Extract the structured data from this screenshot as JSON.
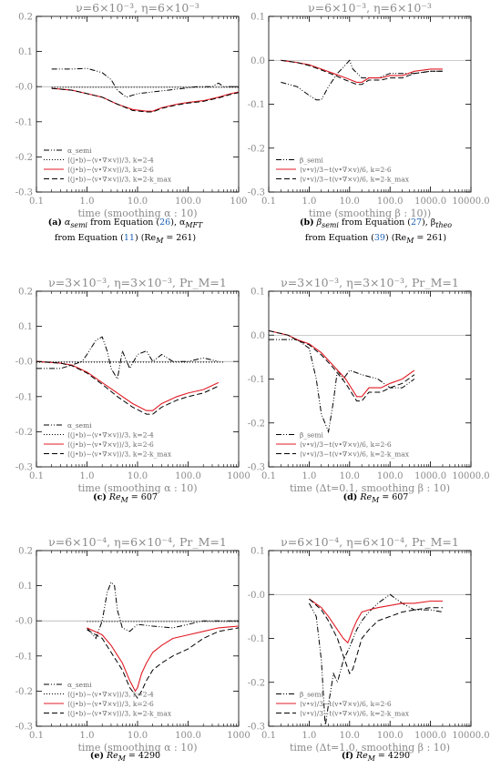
{
  "chart_data": [
    {
      "type": "line",
      "title": "ν=6×10⁻³, η=6×10⁻³",
      "xlabel": "time (smoothing α : 10)",
      "ylabel": "",
      "xscale": "log",
      "xlim": [
        0.1,
        1000
      ],
      "ylim": [
        -0.3,
        0.2
      ],
      "xticks": [
        "0.1",
        "1.0",
        "10.0",
        "100.0",
        "100"
      ],
      "yticks": [
        "0.2",
        "0.1",
        "-0.0",
        "-0.1",
        "-0.2",
        "-0.3"
      ],
      "legend_position": "lower-left",
      "series": [
        {
          "name": "α_semi",
          "style": "dashdotdot",
          "color": "#000000",
          "x": [
            0.2,
            0.5,
            1,
            2,
            3,
            4,
            6,
            10,
            20,
            40,
            80,
            150,
            300,
            400,
            500,
            1000
          ],
          "y": [
            0.05,
            0.05,
            0.052,
            0.04,
            0.02,
            -0.01,
            -0.03,
            -0.02,
            -0.015,
            -0.01,
            -0.005,
            0,
            0,
            0.01,
            0,
            0
          ]
        },
        {
          "name": "⟨(j•b)−⟨v•∇×v⟩⟩/3, k=2-4",
          "style": "dotted",
          "color": "#000000",
          "x": [
            0.2,
            1,
            5,
            10,
            50,
            100,
            300,
            1000
          ],
          "y": [
            -0.002,
            -0.002,
            -0.002,
            -0.002,
            -0.002,
            -0.002,
            -0.002,
            -0.002
          ]
        },
        {
          "name": "⟨(j•b)−⟨v•∇×v⟩⟩/3, k=2-6",
          "style": "solid",
          "color": "#e01b24",
          "x": [
            0.2,
            0.5,
            1,
            2,
            4,
            8,
            15,
            20,
            30,
            60,
            100,
            200,
            400,
            700,
            1000
          ],
          "y": [
            -0.005,
            -0.01,
            -0.02,
            -0.03,
            -0.05,
            -0.065,
            -0.07,
            -0.07,
            -0.06,
            -0.05,
            -0.045,
            -0.04,
            -0.03,
            -0.02,
            -0.015
          ]
        },
        {
          "name": "⟨(j•b)−⟨v•∇×v⟩⟩/3, k=2-k_max",
          "style": "dashed",
          "color": "#000000",
          "x": [
            0.2,
            0.5,
            1,
            2,
            4,
            8,
            15,
            20,
            30,
            60,
            100,
            200,
            400,
            700,
            1000
          ],
          "y": [
            -0.005,
            -0.01,
            -0.02,
            -0.03,
            -0.05,
            -0.068,
            -0.072,
            -0.072,
            -0.062,
            -0.052,
            -0.047,
            -0.042,
            -0.032,
            -0.022,
            -0.017
          ]
        }
      ]
    },
    {
      "type": "line",
      "title": "ν=6×10⁻³, η=6×10⁻³",
      "xlabel": "time (smoothing β : 10))",
      "ylabel": "",
      "xscale": "log",
      "xlim": [
        0.1,
        10000
      ],
      "ylim": [
        -0.3,
        0.1
      ],
      "xticks": [
        "0.1",
        "1.0",
        "10.0",
        "100.0",
        "1000.0",
        "10000.0"
      ],
      "yticks": [
        "0.1",
        "0.0",
        "-0.1",
        "-0.2",
        "-0.3"
      ],
      "legend_position": "lower-left",
      "series": [
        {
          "name": "β_semi",
          "style": "dashdotdot",
          "color": "#000000",
          "x": [
            0.2,
            0.5,
            1,
            1.5,
            2,
            3,
            5,
            8,
            10,
            12,
            20,
            50,
            100,
            200,
            400,
            1000,
            2000
          ],
          "y": [
            -0.05,
            -0.06,
            -0.08,
            -0.09,
            -0.09,
            -0.06,
            -0.03,
            -0.01,
            0.0,
            -0.02,
            -0.04,
            -0.04,
            -0.03,
            -0.03,
            -0.03,
            -0.025,
            -0.025
          ]
        },
        {
          "name": "⟨v•v⟩/3−t⟨v•∇×v⟩/6, k=2-6",
          "style": "solid",
          "color": "#e01b24",
          "x": [
            0.2,
            0.5,
            1,
            2,
            4,
            8,
            15,
            20,
            30,
            60,
            100,
            200,
            400,
            1000,
            2000
          ],
          "y": [
            0,
            -0.005,
            -0.01,
            -0.02,
            -0.03,
            -0.04,
            -0.05,
            -0.05,
            -0.04,
            -0.04,
            -0.035,
            -0.035,
            -0.025,
            -0.02,
            -0.02
          ]
        },
        {
          "name": "⟨v•v⟩/3−t⟨v•∇×v⟩/6, k=2-k_max",
          "style": "dashed",
          "color": "#000000",
          "x": [
            0.2,
            0.5,
            1,
            2,
            4,
            8,
            15,
            20,
            30,
            60,
            100,
            200,
            400,
            1000,
            2000
          ],
          "y": [
            0,
            -0.005,
            -0.012,
            -0.022,
            -0.033,
            -0.045,
            -0.055,
            -0.055,
            -0.045,
            -0.045,
            -0.04,
            -0.04,
            -0.03,
            -0.025,
            -0.025
          ]
        }
      ]
    },
    {
      "type": "line",
      "title": "ν=3×10⁻³, η=3×10⁻³, Pr_M=1",
      "xlabel": "time (smoothing α : 10)",
      "ylabel": "",
      "xscale": "log",
      "xlim": [
        0.1,
        1000
      ],
      "ylim": [
        -0.3,
        0.2
      ],
      "xticks": [
        "0.1",
        "1.0",
        "10.0",
        "100.0",
        "1000"
      ],
      "yticks": [
        "0.2",
        "0.1",
        "-0.0",
        "-0.1",
        "-0.2",
        "-0.3"
      ],
      "legend_position": "lower-left",
      "series": [
        {
          "name": "α_semi",
          "style": "dashdotdot",
          "color": "#000000",
          "x": [
            0.1,
            0.3,
            0.5,
            0.8,
            1,
            1.5,
            2,
            2.5,
            3,
            4,
            5,
            7,
            10,
            15,
            20,
            30,
            50,
            100,
            200,
            400
          ],
          "y": [
            -0.02,
            -0.02,
            -0.01,
            0,
            0.02,
            0.06,
            0.07,
            0.03,
            -0.02,
            -0.05,
            0.03,
            -0.02,
            0.02,
            0.03,
            0.0,
            0.02,
            0.0,
            0.0,
            0.01,
            0.0
          ]
        },
        {
          "name": "⟨(j•b)−⟨v•∇×v⟩⟩/3, k=2-4",
          "style": "dotted",
          "color": "#000000",
          "x": [
            0.1,
            1,
            5,
            10,
            50,
            100,
            500
          ],
          "y": [
            -0.002,
            -0.002,
            -0.002,
            -0.002,
            -0.002,
            -0.002,
            -0.002
          ]
        },
        {
          "name": "⟨(j•b)−⟨v•∇×v⟩⟩/3, k=2-6",
          "style": "solid",
          "color": "#e01b24",
          "x": [
            0.1,
            0.3,
            0.5,
            1,
            2,
            4,
            8,
            15,
            20,
            30,
            60,
            100,
            200,
            400
          ],
          "y": [
            0,
            -0.005,
            -0.01,
            -0.03,
            -0.06,
            -0.09,
            -0.12,
            -0.14,
            -0.14,
            -0.12,
            -0.1,
            -0.09,
            -0.08,
            -0.06
          ]
        },
        {
          "name": "⟨(j•b)−⟨v•∇×v⟩⟩/3, k=2-k_max",
          "style": "dashed",
          "color": "#000000",
          "x": [
            0.1,
            0.3,
            0.5,
            1,
            2,
            4,
            8,
            15,
            20,
            30,
            60,
            100,
            200,
            400
          ],
          "y": [
            0,
            -0.005,
            -0.012,
            -0.033,
            -0.065,
            -0.1,
            -0.13,
            -0.15,
            -0.15,
            -0.13,
            -0.11,
            -0.1,
            -0.09,
            -0.07
          ]
        }
      ]
    },
    {
      "type": "line",
      "title": "ν=3×10⁻³, η=3×10⁻³, Pr_M=1",
      "xlabel": "time (Δt=0.1, smoothing β : 10)",
      "ylabel": "",
      "xscale": "log",
      "xlim": [
        0.1,
        10000
      ],
      "ylim": [
        -0.3,
        0.1
      ],
      "xticks": [
        "0.1",
        "1.0",
        "10.0",
        "100.0",
        "1000.0",
        "10000.0"
      ],
      "yticks": [
        "0.1",
        "0.0",
        "-0.1",
        "-0.2",
        "-0.3"
      ],
      "legend_position": "lower-left",
      "series": [
        {
          "name": "β_semi",
          "style": "dashdotdot",
          "color": "#000000",
          "x": [
            0.1,
            0.3,
            0.5,
            1,
            1.5,
            2,
            3,
            4,
            5,
            7,
            10,
            20,
            50,
            100,
            200,
            400
          ],
          "y": [
            -0.01,
            -0.01,
            -0.01,
            -0.03,
            -0.1,
            -0.18,
            -0.22,
            -0.15,
            -0.08,
            -0.1,
            -0.08,
            -0.09,
            -0.1,
            -0.12,
            -0.12,
            -0.1
          ]
        },
        {
          "name": "⟨v•v⟩/3−t⟨v•∇×v⟩/6, k=2-6",
          "style": "solid",
          "color": "#e01b24",
          "x": [
            0.1,
            0.3,
            0.5,
            1,
            2,
            4,
            8,
            15,
            20,
            30,
            60,
            100,
            200,
            400
          ],
          "y": [
            0.01,
            0.0,
            -0.01,
            -0.02,
            -0.04,
            -0.07,
            -0.1,
            -0.14,
            -0.14,
            -0.12,
            -0.12,
            -0.11,
            -0.1,
            -0.08
          ]
        },
        {
          "name": "⟨v•v⟩/3−t⟨v•∇×v⟩/6, k=2-k_max",
          "style": "dashed",
          "color": "#000000",
          "x": [
            0.1,
            0.3,
            0.5,
            1,
            2,
            4,
            8,
            15,
            20,
            30,
            60,
            100,
            200,
            400
          ],
          "y": [
            0.01,
            0.0,
            -0.012,
            -0.022,
            -0.045,
            -0.075,
            -0.11,
            -0.15,
            -0.15,
            -0.13,
            -0.13,
            -0.12,
            -0.11,
            -0.09
          ]
        }
      ]
    },
    {
      "type": "line",
      "title": "ν=6×10⁻⁴, η=6×10⁻⁴, Pr_M=1",
      "xlabel": "time (smoothing α : 10)",
      "ylabel": "",
      "xscale": "log",
      "xlim": [
        0.1,
        1000
      ],
      "ylim": [
        -0.3,
        0.2
      ],
      "xticks": [
        "0.1",
        "1.0",
        "10.0",
        "100.0",
        "1000"
      ],
      "yticks": [
        "0.2",
        "0.1",
        "-0.0",
        "-0.1",
        "-0.2",
        "-0.3"
      ],
      "legend_position": "lower-left",
      "series": [
        {
          "name": "α_semi",
          "style": "dashdotdot",
          "color": "#000000",
          "x": [
            1,
            1.5,
            2,
            2.5,
            3,
            3.5,
            4,
            5,
            7,
            10,
            20,
            50,
            100,
            200,
            400,
            1000
          ],
          "y": [
            -0.02,
            -0.05,
            0.0,
            0.08,
            0.11,
            0.1,
            0.03,
            -0.02,
            -0.03,
            -0.01,
            -0.015,
            -0.02,
            -0.01,
            0,
            0,
            0
          ]
        },
        {
          "name": "⟨(j•b)−⟨v•∇×v⟩⟩/3, k=2-4",
          "style": "dotted",
          "color": "#000000",
          "x": [
            1,
            2,
            5,
            10,
            50,
            100,
            1000
          ],
          "y": [
            -0.002,
            -0.002,
            -0.002,
            -0.002,
            -0.002,
            -0.002,
            -0.002
          ]
        },
        {
          "name": "⟨(j•b)−⟨v•∇×v⟩⟩/3, k=2-6",
          "style": "solid",
          "color": "#e01b24",
          "x": [
            1,
            2,
            3,
            5,
            7,
            9,
            10,
            12,
            15,
            20,
            30,
            50,
            100,
            200,
            400,
            1000
          ],
          "y": [
            -0.02,
            -0.04,
            -0.07,
            -0.12,
            -0.17,
            -0.2,
            -0.19,
            -0.15,
            -0.12,
            -0.09,
            -0.07,
            -0.05,
            -0.04,
            -0.03,
            -0.02,
            -0.015
          ]
        },
        {
          "name": "⟨(j•b)−⟨v•∇×v⟩⟩/3, k=2-k_max",
          "style": "dashed",
          "color": "#000000",
          "x": [
            1,
            2,
            3,
            5,
            7,
            10,
            12,
            15,
            20,
            30,
            50,
            100,
            200,
            400,
            1000
          ],
          "y": [
            -0.025,
            -0.05,
            -0.09,
            -0.14,
            -0.19,
            -0.22,
            -0.2,
            -0.17,
            -0.14,
            -0.12,
            -0.1,
            -0.08,
            -0.05,
            -0.03,
            -0.02
          ]
        }
      ]
    },
    {
      "type": "line",
      "title": "ν=6×10⁻⁴, η=6×10⁻⁴, Pr_M=1",
      "xlabel": "time (Δt=1.0, smoothing β : 10)",
      "ylabel": "",
      "xscale": "log",
      "xlim": [
        0.1,
        10000
      ],
      "ylim": [
        -0.3,
        0.1
      ],
      "xticks": [
        "0.1",
        "1.0",
        "10.0",
        "100.0",
        "1000.0",
        "10000.0"
      ],
      "yticks": [
        "0.1",
        "-0.0",
        "-0.1",
        "-0.2",
        "-0.3"
      ],
      "legend_position": "lower-left",
      "series": [
        {
          "name": "β_semi",
          "style": "dashdotdot",
          "color": "#000000",
          "x": [
            1,
            1.5,
            2,
            2.5,
            3,
            4,
            5,
            7,
            10,
            15,
            20,
            30,
            50,
            100,
            200,
            400,
            1000,
            2000
          ],
          "y": [
            -0.02,
            -0.05,
            -0.15,
            -0.3,
            -0.25,
            -0.18,
            -0.2,
            -0.15,
            -0.12,
            -0.08,
            -0.06,
            -0.04,
            -0.02,
            0.0,
            -0.02,
            -0.035,
            -0.035,
            -0.04
          ]
        },
        {
          "name": "⟨v•v⟩/3−t⟨v•∇×v⟩/6, k=2-6",
          "style": "solid",
          "color": "#e01b24",
          "x": [
            1,
            2,
            3,
            5,
            7,
            9,
            10,
            12,
            15,
            20,
            30,
            50,
            100,
            200,
            400,
            1000,
            2000
          ],
          "y": [
            -0.01,
            -0.03,
            -0.05,
            -0.08,
            -0.1,
            -0.11,
            -0.1,
            -0.08,
            -0.06,
            -0.04,
            -0.035,
            -0.03,
            -0.025,
            -0.02,
            -0.02,
            -0.015,
            -0.015
          ]
        },
        {
          "name": "⟨v•v⟩/3−t⟨v•∇×v⟩/6, k=2-k_max",
          "style": "dashed",
          "color": "#000000",
          "x": [
            1,
            2,
            3,
            5,
            7,
            10,
            12,
            15,
            20,
            30,
            50,
            100,
            200,
            400,
            1000,
            2000
          ],
          "y": [
            -0.01,
            -0.035,
            -0.06,
            -0.1,
            -0.14,
            -0.18,
            -0.17,
            -0.14,
            -0.1,
            -0.08,
            -0.06,
            -0.05,
            -0.04,
            -0.035,
            -0.03,
            -0.03
          ]
        }
      ]
    }
  ],
  "captions": [
    {
      "letter": "(a)",
      "pre": "α",
      "sub": "semi",
      "text1": " from Equation (",
      "ref1": "26",
      "text2": "), α",
      "sub2": "MFT",
      "text3": " from Equation (",
      "ref2": "11",
      "text4": ") (Re",
      "sub3": "M",
      "text5": " = 261)"
    },
    {
      "letter": "(b)",
      "pre": "β",
      "sub": "semi",
      "text1": " from Equation (",
      "ref1": "27",
      "text2": "), β",
      "sub2": "theo",
      "text3": " from Equation (",
      "ref2": "39",
      "text4": ") (Re",
      "sub3": "M",
      "text5": " = 261)"
    },
    {
      "letter": "(c)",
      "pre": "Re",
      "sub": "M",
      "text1": " = 607"
    },
    {
      "letter": "(d)",
      "pre": "Re",
      "sub": "M",
      "text1": " = 607"
    },
    {
      "letter": "(e)",
      "pre": "Re",
      "sub": "M",
      "text1": " = 4290"
    },
    {
      "letter": "(f)",
      "pre": "Re",
      "sub": "M",
      "text1": " = 4290"
    }
  ]
}
